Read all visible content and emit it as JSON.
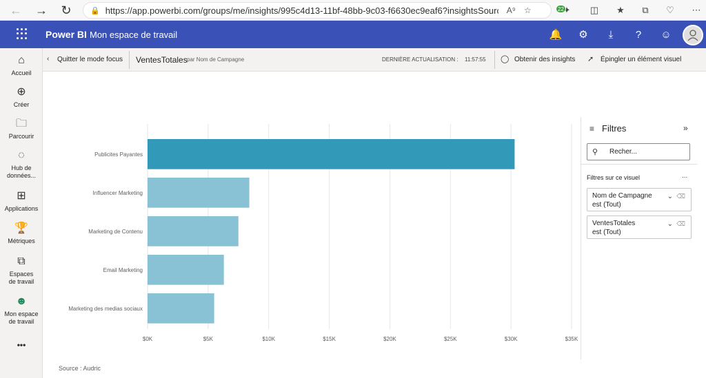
{
  "browser": {
    "url": "https://app.powerbi.com/groups/me/insights/995c4d13-11bf-48bb-9c03-f6630ec9eaf6?insightsSource=Desk..."
  },
  "header": {
    "app_name": "Power BI",
    "workspace": "Mon espace de travail",
    "notification_count": "22"
  },
  "left_nav": {
    "items": [
      {
        "label": "Accueil"
      },
      {
        "label": "Créer"
      },
      {
        "label": "Parcourir"
      },
      {
        "label": "Hub de données..."
      },
      {
        "label": "Applications"
      },
      {
        "label": "Métriques"
      },
      {
        "label": "Espaces de travail"
      },
      {
        "label": "Mon espace de travail"
      }
    ],
    "more": "•••"
  },
  "focus_bar": {
    "exit_label": "Quitter le mode focus",
    "visual_title": "VentesTotales",
    "visual_subtitle": "par Nom de Campagne",
    "refresh_label": "DERNIÈRE ACTUALISATION :",
    "refresh_time": "11:57:55",
    "insights_label": "Obtenir des insights",
    "pin_label": "Épingler un élément visuel"
  },
  "filters": {
    "title": "Filtres",
    "search_placeholder": "Recher...",
    "section_label": "Filtres sur ce visuel",
    "section_more": "...",
    "cards": [
      {
        "field": "Nom de Campagne",
        "state": "est (Tout)"
      },
      {
        "field": "VentesTotales",
        "state": "est (Tout)"
      }
    ]
  },
  "source": "Source : Audric",
  "colors": {
    "header_bg": "#3a52b8",
    "bar_highlight": "#3399b8",
    "bar_normal": "#88c2d4"
  },
  "chart_data": {
    "type": "bar",
    "orientation": "horizontal",
    "title": "VentesTotales par Nom de Campagne",
    "categories": [
      "Publicites Payantes",
      "Influencer Marketing",
      "Marketing de Contenu",
      "Email Marketing",
      "Marketing des medias sociaux"
    ],
    "values": [
      30300,
      8400,
      7500,
      6300,
      5500
    ],
    "highlighted_index": 0,
    "xlim": [
      0,
      35000
    ],
    "x_ticks": [
      0,
      5000,
      10000,
      15000,
      20000,
      25000,
      30000,
      35000
    ],
    "x_tick_labels": [
      "$0K",
      "$5K",
      "$10K",
      "$15K",
      "$20K",
      "$25K",
      "$30K",
      "$35K"
    ],
    "grid": true
  }
}
